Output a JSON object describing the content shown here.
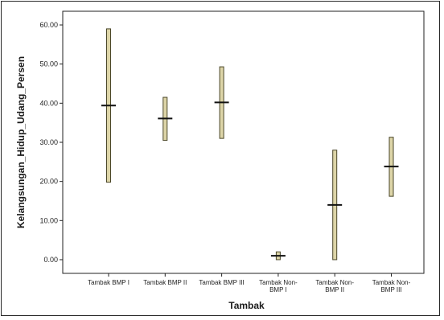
{
  "chart_data": {
    "type": "range",
    "title": "",
    "xlabel": "Tambak",
    "ylabel": "Kelangsungan_Hidup_Udang_Persen",
    "ylim": [
      -3.5,
      63.5
    ],
    "yticks": [
      0,
      10,
      20,
      30,
      40,
      50,
      60
    ],
    "ytick_labels": [
      "0.00",
      "10.00",
      "20.00",
      "30.00",
      "40.00",
      "50.00",
      "60.00"
    ],
    "grid": false,
    "categories": [
      [
        "Tambak BMP I"
      ],
      [
        "Tambak BMP II"
      ],
      [
        "Tambak BMP III"
      ],
      [
        "Tambak Non-",
        "BMP I"
      ],
      [
        "Tambak Non-",
        "BMP II"
      ],
      [
        "Tambak Non-",
        "BMP III"
      ]
    ],
    "series": [
      {
        "low": [
          19.8,
          30.5,
          31.0,
          0.0,
          0.0,
          16.2
        ],
        "high": [
          59.0,
          41.5,
          49.3,
          2.0,
          28.0,
          31.3
        ],
        "mid": [
          39.4,
          36.1,
          40.2,
          1.0,
          14.0,
          23.8
        ]
      }
    ],
    "colors": {
      "bar_fill": "#ddd5a8",
      "bar_stroke": "#4a4628",
      "marker": "#111111",
      "plot_bg": "#ffffff"
    }
  }
}
